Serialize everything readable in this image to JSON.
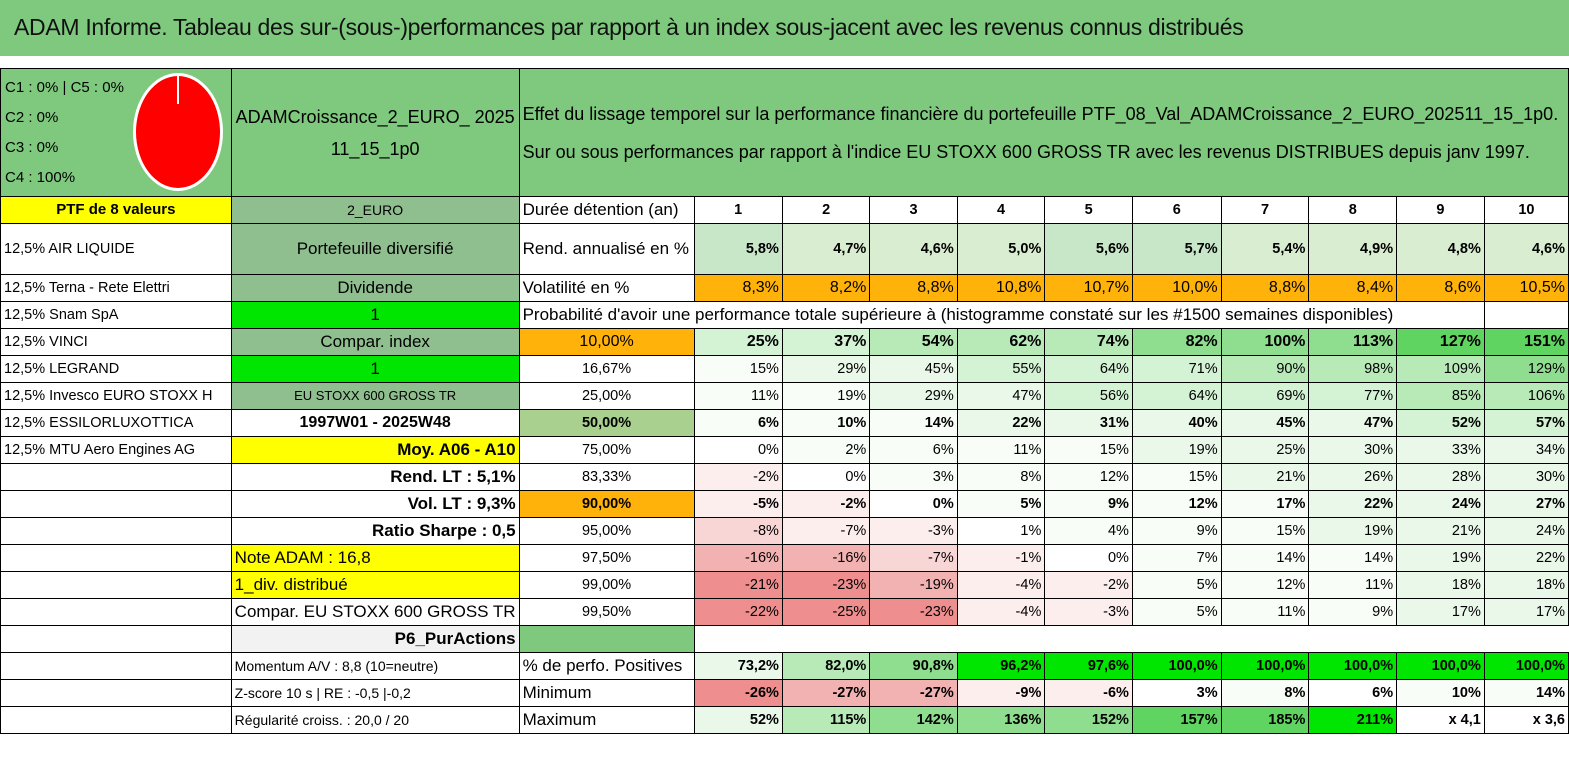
{
  "title": "ADAM Informe. Tableau des sur-(sous-)performances par rapport à un index sous-jacent avec les revenus connus distribués",
  "legend": [
    "C1 : 0% | C5 : 0%",
    "C2 : 0%",
    "C3 : 0%",
    "C4 : 100%"
  ],
  "portfolio_name": "ADAMCroissance_2_EURO_ 202511_15_1p0",
  "description": [
    "Effet du lissage temporel sur la performance financière du portefeuille PTF_08_Val_ADAMCroissance_2_EURO_202511_15_1p0.",
    "Sur ou sous performances par rapport à l'indice EU STOXX 600 GROSS TR avec les revenus DISTRIBUES depuis janv 1997."
  ],
  "ptf_label": "PTF de 8 valeurs",
  "currency": "2_EURO",
  "durations_label": "Durée détention (an)",
  "durations": [
    "1",
    "2",
    "3",
    "4",
    "5",
    "6",
    "7",
    "8",
    "9",
    "10"
  ],
  "holdings": [
    "12,5% AIR LIQUIDE",
    "12,5% Terna - Rete Elettri",
    "12,5% Snam SpA",
    "12,5% VINCI",
    "12,5% LEGRAND",
    "12,5% Invesco EURO STOXX H",
    "12,5% ESSILORLUXOTTICA",
    "12,5% MTU Aero Engines AG"
  ],
  "col2": [
    "Portefeuille diversifié",
    "Dividende",
    "1",
    "Compar. index",
    "1",
    "EU STOXX 600 GROSS TR",
    "1997W01 - 2025W48",
    "Moy. A06 - A10",
    "Rend. LT : 5,1%",
    "Vol. LT : 9,3%",
    "Ratio Sharpe : 0,5",
    "Note ADAM : 16,8",
    "1_div. distribué",
    "Compar. EU STOXX 600 GROSS TR",
    "P6_PurActions"
  ],
  "rend_label": "Rend. annualisé en %",
  "rend": [
    "5,8%",
    "4,7%",
    "4,6%",
    "5,0%",
    "5,6%",
    "5,7%",
    "5,4%",
    "4,9%",
    "4,8%",
    "4,6%"
  ],
  "vol_label": "Volatilité en %",
  "vol": [
    "8,3%",
    "8,2%",
    "8,8%",
    "10,8%",
    "10,7%",
    "10,0%",
    "8,8%",
    "8,4%",
    "8,6%",
    "10,5%"
  ],
  "prob_title": "Probabilité d'avoir une performance totale supérieure à (histogramme constaté sur les #1500 semaines disponibles)",
  "prob_rows": [
    {
      "label": "10,00%",
      "values": [
        "25%",
        "37%",
        "54%",
        "62%",
        "74%",
        "82%",
        "100%",
        "113%",
        "127%",
        "151%"
      ]
    },
    {
      "label": "16,67%",
      "values": [
        "15%",
        "29%",
        "45%",
        "55%",
        "64%",
        "71%",
        "90%",
        "98%",
        "109%",
        "129%"
      ]
    },
    {
      "label": "25,00%",
      "values": [
        "11%",
        "19%",
        "29%",
        "47%",
        "56%",
        "64%",
        "69%",
        "77%",
        "85%",
        "106%"
      ]
    },
    {
      "label": "50,00%",
      "values": [
        "6%",
        "10%",
        "14%",
        "22%",
        "31%",
        "40%",
        "45%",
        "47%",
        "52%",
        "57%"
      ]
    },
    {
      "label": "75,00%",
      "values": [
        "0%",
        "2%",
        "6%",
        "11%",
        "15%",
        "19%",
        "25%",
        "30%",
        "33%",
        "34%"
      ]
    },
    {
      "label": "83,33%",
      "values": [
        "-2%",
        "0%",
        "3%",
        "8%",
        "12%",
        "15%",
        "21%",
        "26%",
        "28%",
        "30%"
      ]
    },
    {
      "label": "90,00%",
      "values": [
        "-5%",
        "-2%",
        "0%",
        "5%",
        "9%",
        "12%",
        "17%",
        "22%",
        "24%",
        "27%"
      ]
    },
    {
      "label": "95,00%",
      "values": [
        "-8%",
        "-7%",
        "-3%",
        "1%",
        "4%",
        "9%",
        "15%",
        "19%",
        "21%",
        "24%"
      ]
    },
    {
      "label": "97,50%",
      "values": [
        "-16%",
        "-16%",
        "-7%",
        "-1%",
        "0%",
        "7%",
        "14%",
        "14%",
        "19%",
        "22%"
      ]
    },
    {
      "label": "99,00%",
      "values": [
        "-21%",
        "-23%",
        "-19%",
        "-4%",
        "-2%",
        "5%",
        "12%",
        "11%",
        "18%",
        "18%"
      ]
    },
    {
      "label": "99,50%",
      "values": [
        "-22%",
        "-25%",
        "-23%",
        "-4%",
        "-3%",
        "5%",
        "11%",
        "9%",
        "17%",
        "17%"
      ]
    }
  ],
  "stats": [
    {
      "left": "Momentum A/V : 8,8 (10=neutre)",
      "label": "% de perfo. Positives",
      "values": [
        "73,2%",
        "82,0%",
        "90,8%",
        "96,2%",
        "97,6%",
        "100,0%",
        "100,0%",
        "100,0%",
        "100,0%",
        "100,0%"
      ]
    },
    {
      "left": "Z-score 10 s | RE : -0,5 |-0,2",
      "label": "Minimum",
      "values": [
        "-26%",
        "-27%",
        "-27%",
        "-9%",
        "-6%",
        "3%",
        "8%",
        "6%",
        "10%",
        "14%"
      ]
    },
    {
      "left": "Régularité croiss. : 20,0 / 20",
      "label": "Maximum",
      "values": [
        "52%",
        "115%",
        "142%",
        "136%",
        "152%",
        "157%",
        "185%",
        "211%",
        "x 4,1",
        "x 3,6"
      ]
    }
  ],
  "colors": {
    "banner": "#7ec97e",
    "accent_green": "#00e600",
    "yellow": "#ffff00",
    "orange": "#ffb20a",
    "red_text": "#e0141b"
  }
}
